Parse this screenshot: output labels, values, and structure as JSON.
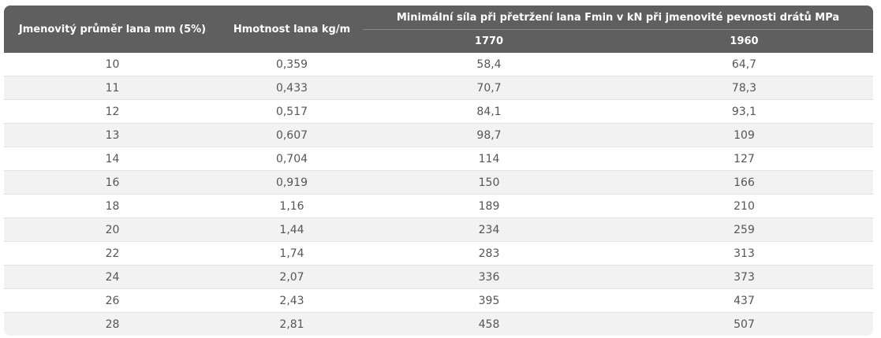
{
  "table": {
    "headers": {
      "diameter": "Jmenovitý průměr lana mm (5%)",
      "weight": "Hmotnost lana kg/m",
      "force_group": "Minimální síla při přetržení lana Fmin v kN při jmenovité pevnosti drátů MPa",
      "strength_1770": "1770",
      "strength_1960": "1960"
    },
    "rows": [
      {
        "d": "10",
        "w": "0,359",
        "f1": "58,4",
        "f2": "64,7"
      },
      {
        "d": "11",
        "w": "0,433",
        "f1": "70,7",
        "f2": "78,3"
      },
      {
        "d": "12",
        "w": "0,517",
        "f1": "84,1",
        "f2": "93,1"
      },
      {
        "d": "13",
        "w": "0,607",
        "f1": "98,7",
        "f2": "109"
      },
      {
        "d": "14",
        "w": "0,704",
        "f1": "114",
        "f2": "127"
      },
      {
        "d": "16",
        "w": "0,919",
        "f1": "150",
        "f2": "166"
      },
      {
        "d": "18",
        "w": "1,16",
        "f1": "189",
        "f2": "210"
      },
      {
        "d": "20",
        "w": "1,44",
        "f1": "234",
        "f2": "259"
      },
      {
        "d": "22",
        "w": "1,74",
        "f1": "283",
        "f2": "313"
      },
      {
        "d": "24",
        "w": "2,07",
        "f1": "336",
        "f2": "373"
      },
      {
        "d": "26",
        "w": "2,43",
        "f1": "395",
        "f2": "437"
      },
      {
        "d": "28",
        "w": "2,81",
        "f1": "458",
        "f2": "507"
      }
    ]
  },
  "colors": {
    "header_bg": "#5f5f5f",
    "header_text": "#ffffff",
    "row_alt_bg": "#f2f2f2",
    "cell_text": "#555555"
  }
}
